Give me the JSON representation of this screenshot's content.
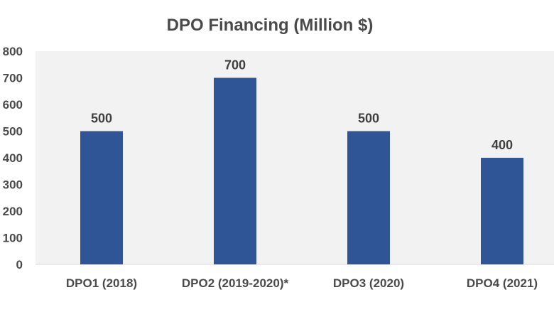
{
  "chart_data": {
    "type": "bar",
    "title": "DPO Financing (Million $)",
    "categories": [
      "DPO1 (2018)",
      "DPO2 (2019-2020)*",
      "DPO3 (2020)",
      "DPO4 (2021)"
    ],
    "values": [
      500,
      700,
      500,
      400
    ],
    "data_labels": [
      "500",
      "700",
      "500",
      "400"
    ],
    "xlabel": "",
    "ylabel": "",
    "ylim": [
      0,
      800
    ],
    "yticks": [
      0,
      100,
      200,
      300,
      400,
      500,
      600,
      700,
      800
    ],
    "grid": false,
    "legend": "none",
    "colors": {
      "bar": "#2f5597",
      "plot_background": "#f2f2f2",
      "text": "#4a4a4a"
    }
  }
}
